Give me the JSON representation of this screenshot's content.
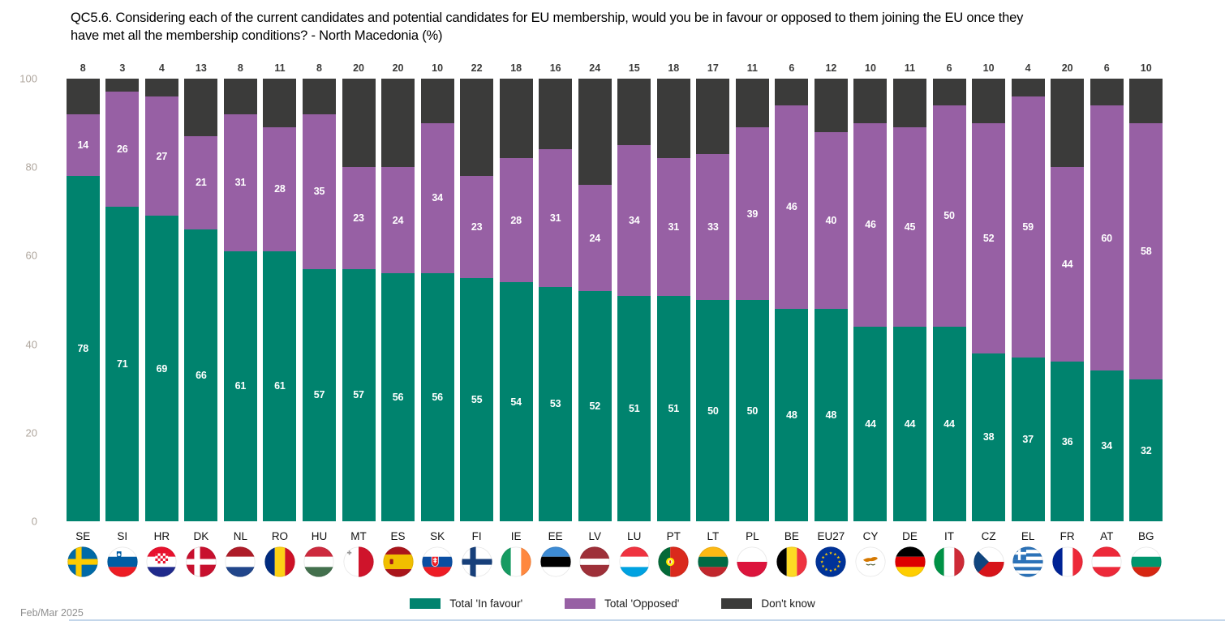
{
  "page": {
    "background": "#ffffff"
  },
  "title": {
    "line1": "QC5.6. Considering each of the current candidates and potential candidates for EU membership, would you be in favour or opposed to them joining the EU once they",
    "line2": "have met all the membership conditions? - North Macedonia (%)"
  },
  "footer": {
    "date_label": "Feb/Mar 2025"
  },
  "legend": {
    "items": [
      {
        "label": "Total 'In favour'",
        "color": "#00836E"
      },
      {
        "label": "Total 'Opposed'",
        "color": "#9760A4"
      },
      {
        "label": "Don't know",
        "color": "#3B3B3A"
      }
    ]
  },
  "chart_data": {
    "type": "bar",
    "stacked": true,
    "title": "QC5.6. Considering each of the current candidates and potential candidates for EU membership, would you be in favour or opposed to them joining the EU once they have met all the membership conditions? - North Macedonia (%)",
    "categories": [
      "SE",
      "SI",
      "HR",
      "DK",
      "NL",
      "RO",
      "HU",
      "MT",
      "ES",
      "SK",
      "FI",
      "IE",
      "EE",
      "LV",
      "LU",
      "PT",
      "LT",
      "PL",
      "BE",
      "EU27",
      "CY",
      "DE",
      "IT",
      "CZ",
      "EL",
      "FR",
      "AT",
      "BG"
    ],
    "series": [
      {
        "name": "Total 'In favour'",
        "color": "#00836E",
        "values": [
          78,
          71,
          69,
          66,
          61,
          61,
          57,
          57,
          56,
          56,
          55,
          54,
          53,
          52,
          51,
          51,
          50,
          50,
          48,
          48,
          44,
          44,
          44,
          38,
          37,
          36,
          34,
          32
        ]
      },
      {
        "name": "Total 'Opposed'",
        "color": "#9760A4",
        "values": [
          14,
          26,
          27,
          21,
          31,
          28,
          35,
          23,
          24,
          34,
          23,
          28,
          31,
          24,
          34,
          31,
          33,
          39,
          46,
          40,
          46,
          45,
          50,
          52,
          59,
          44,
          60,
          58
        ]
      },
      {
        "name": "Don't know",
        "color": "#3B3B3A",
        "values": [
          8,
          3,
          4,
          13,
          8,
          11,
          8,
          20,
          20,
          10,
          22,
          18,
          16,
          24,
          15,
          18,
          17,
          11,
          6,
          12,
          10,
          11,
          6,
          10,
          4,
          20,
          6,
          10
        ]
      }
    ],
    "xlabel": "",
    "ylabel": "",
    "ylim": [
      0,
      100
    ],
    "yticks": [
      0,
      20,
      40,
      60,
      80,
      100
    ],
    "grid": false,
    "legend_position": "bottom",
    "annotations": "In favour and Opposed values printed in white inside segments; Don't know values printed in dark grey above each bar; circular country flag icons below country codes"
  }
}
